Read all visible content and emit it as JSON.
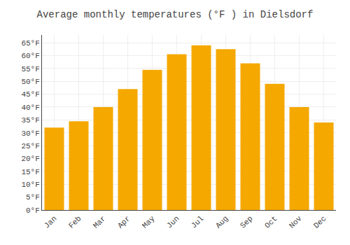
{
  "chart_data": {
    "type": "bar",
    "title": "Average monthly temperatures (°F ) in Dielsdorf",
    "categories": [
      "Jan",
      "Feb",
      "Mar",
      "Apr",
      "May",
      "Jun",
      "Jul",
      "Aug",
      "Sep",
      "Oct",
      "Nov",
      "Dec"
    ],
    "values": [
      32,
      34.5,
      40,
      47,
      54.5,
      60.5,
      64,
      62.5,
      57,
      49,
      40,
      34
    ],
    "color": "#F5A800",
    "ylim": [
      0,
      68
    ],
    "yticks": [
      {
        "value": 0,
        "label": "0°F"
      },
      {
        "value": 5,
        "label": "5°F"
      },
      {
        "value": 10,
        "label": "10°F"
      },
      {
        "value": 15,
        "label": "15°F"
      },
      {
        "value": 20,
        "label": "20°F"
      },
      {
        "value": 25,
        "label": "25°F"
      },
      {
        "value": 30,
        "label": "30°F"
      },
      {
        "value": 35,
        "label": "35°F"
      },
      {
        "value": 40,
        "label": "40°F"
      },
      {
        "value": 45,
        "label": "45°F"
      },
      {
        "value": 50,
        "label": "50°F"
      },
      {
        "value": 55,
        "label": "55°F"
      },
      {
        "value": 60,
        "label": "60°F"
      },
      {
        "value": 65,
        "label": "65°F"
      }
    ],
    "grid": true
  }
}
